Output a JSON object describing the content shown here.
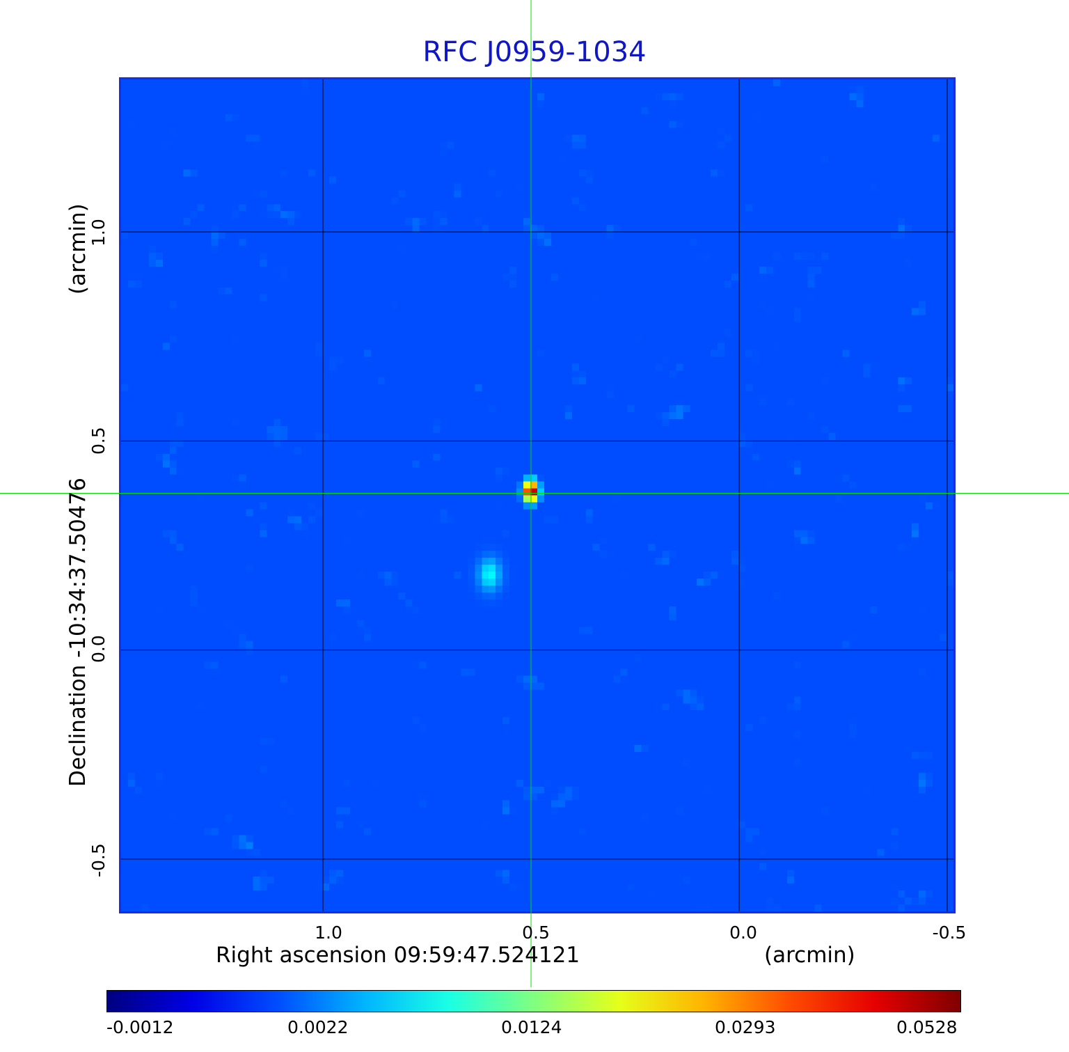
{
  "chart_data": {
    "type": "heatmap",
    "title": "RFC J0959-1034",
    "xlabel": "Right ascension  09:59:47.524121",
    "xlabel_unit": "(arcmin)",
    "ylabel": "Declination  -10:34:37.50476",
    "ylabel_unit": "(arcmin)",
    "x_ticks": [
      "1.0",
      "0.5",
      "0.0",
      "-0.5"
    ],
    "y_ticks": [
      "1.0",
      "0.5",
      "0.0",
      "-0.5"
    ],
    "xlim": [
      1.49,
      -0.52
    ],
    "ylim": [
      -0.63,
      1.37
    ],
    "grid": true,
    "crosshair": {
      "ra_offset_arcmin": 0.5,
      "dec_offset_arcmin": 0.375,
      "color": "#00e000"
    },
    "source_peak": {
      "ra_offset_arcmin": 0.5,
      "dec_offset_arcmin": 0.38,
      "value": 0.0528
    },
    "secondary_feature": {
      "ra_offset_arcmin": 0.6,
      "dec_offset_arcmin": 0.18,
      "value": 0.006
    },
    "colormap": "jet",
    "colorbar": {
      "tick_labels": [
        "-0.0012",
        "0.0022",
        "0.0124",
        "0.0293",
        "0.0528"
      ],
      "min": -0.0012,
      "max": 0.0528
    }
  }
}
